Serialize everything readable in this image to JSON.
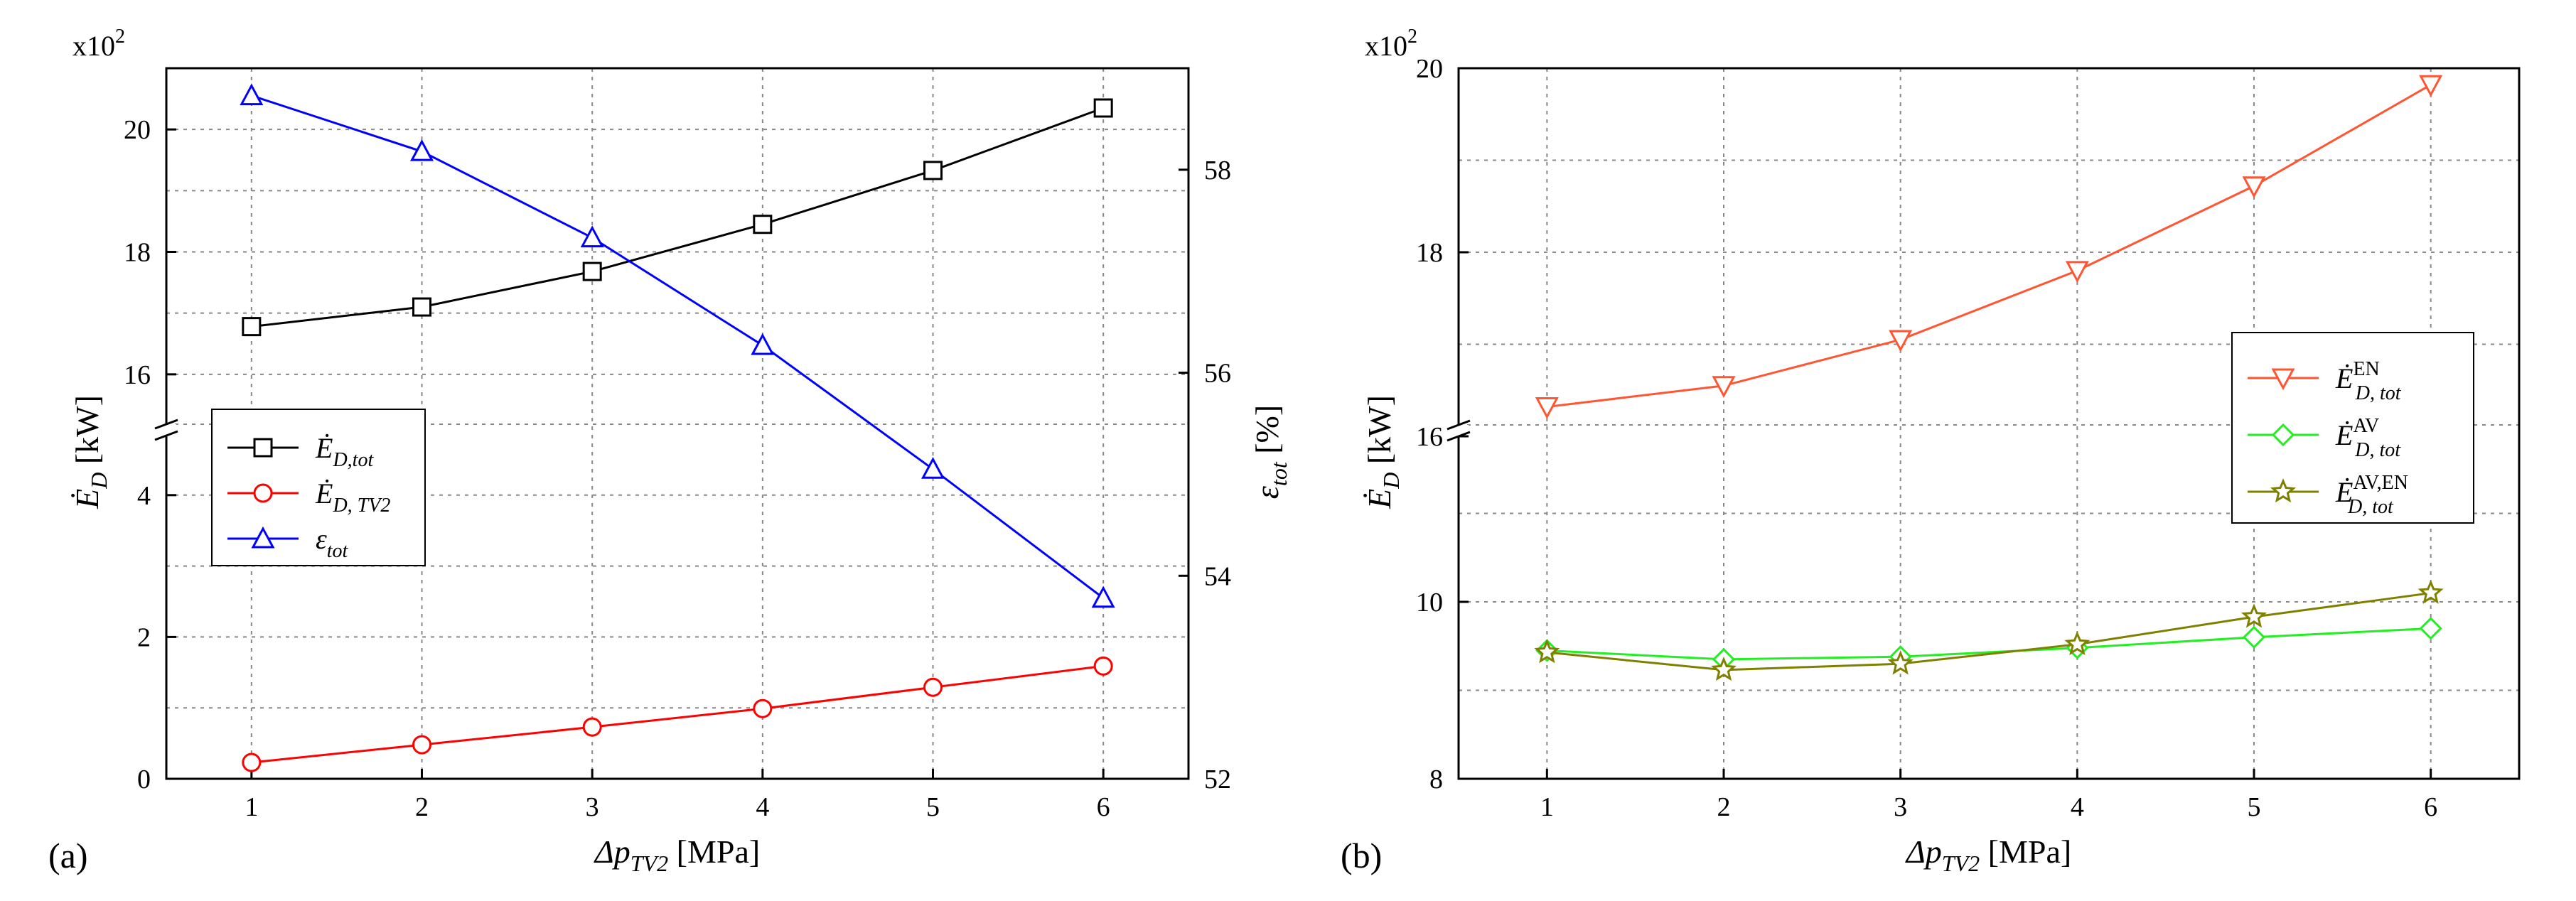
{
  "chart_data": [
    {
      "id": "a",
      "panel_label": "(a)",
      "type": "line",
      "x": [
        1,
        2,
        3,
        4,
        5,
        6
      ],
      "x_ticks": [
        "1",
        "2",
        "3",
        "4",
        "5",
        "6"
      ],
      "xlim": [
        0.5,
        6.5
      ],
      "xlabel": {
        "main": "Δp",
        "sub": "TV2",
        "unit": " [MPa]"
      },
      "ylabel_left": {
        "main": "Ė",
        "sub": "D",
        "unit": " [kW]"
      },
      "ylabel_right": {
        "main": "ε",
        "sub": "tot",
        "unit": " [%]"
      },
      "y_multiplier": {
        "base": "x10",
        "exp": "2"
      },
      "left_axis_break": {
        "lower_range": [
          0,
          5
        ],
        "lower_ticks": [
          "0",
          "2",
          "4"
        ],
        "upper_range": [
          15,
          21
        ],
        "upper_ticks": [
          "16",
          "18",
          "20"
        ]
      },
      "right_axis": {
        "range": [
          52,
          59
        ],
        "ticks": [
          "52",
          "54",
          "56",
          "58"
        ]
      },
      "series": [
        {
          "name": "Ė_D,tot",
          "label_main": "Ė",
          "label_sub": "D,tot",
          "axis": "left",
          "segment": "upper",
          "marker": "square",
          "color": "#000000",
          "values": [
            16.78,
            17.1,
            17.68,
            18.45,
            19.33,
            20.35
          ]
        },
        {
          "name": "Ė_D,TV2",
          "label_main": "Ė",
          "label_sub": "D, TV2",
          "axis": "left",
          "segment": "lower",
          "marker": "circle",
          "color": "#ff0000",
          "values": [
            0.23,
            0.48,
            0.73,
            0.99,
            1.29,
            1.59
          ]
        },
        {
          "name": "ε_tot",
          "label_main": "ε",
          "label_sub": "tot",
          "axis": "right",
          "marker": "triangle-up",
          "color": "#0000ff",
          "values": [
            58.73,
            58.18,
            57.33,
            56.27,
            55.05,
            53.78
          ]
        }
      ]
    },
    {
      "id": "b",
      "panel_label": "(b)",
      "type": "line",
      "x": [
        1,
        2,
        3,
        4,
        5,
        6
      ],
      "x_ticks": [
        "1",
        "2",
        "3",
        "4",
        "5",
        "6"
      ],
      "xlim": [
        0.5,
        6.5
      ],
      "xlabel": {
        "main": "Δp",
        "sub": "TV2",
        "unit": " [MPa]"
      },
      "ylabel_left": {
        "main": "Ė",
        "sub": "D",
        "unit": " [kW]"
      },
      "y_multiplier": {
        "base": "x10",
        "exp": "2"
      },
      "left_axis_break": {
        "lower_range": [
          8,
          12
        ],
        "lower_ticks": [
          "8",
          "10"
        ],
        "upper_range": [
          16,
          20
        ],
        "upper_ticks": [
          "16",
          "18",
          "20"
        ]
      },
      "series": [
        {
          "name": "Ė_D,tot^EN",
          "label_main": "Ė",
          "label_sub": "D, tot",
          "label_sup": "EN",
          "segment": "upper",
          "marker": "triangle-down",
          "color": "#ff5533",
          "values": [
            16.32,
            16.55,
            17.05,
            17.8,
            18.72,
            19.82
          ]
        },
        {
          "name": "Ė_D,tot^AV",
          "label_main": "Ė",
          "label_sub": "D, tot",
          "label_sup": "AV",
          "segment": "lower",
          "marker": "diamond",
          "color": "#22ee22",
          "values": [
            9.45,
            9.35,
            9.38,
            9.48,
            9.6,
            9.7
          ]
        },
        {
          "name": "Ė_D,tot^AV,EN",
          "label_main": "Ė",
          "label_sub": "D, tot",
          "label_sup": "AV,EN",
          "segment": "lower",
          "marker": "star",
          "color": "#808000",
          "values": [
            9.43,
            9.23,
            9.3,
            9.52,
            9.83,
            10.1
          ]
        }
      ]
    }
  ]
}
